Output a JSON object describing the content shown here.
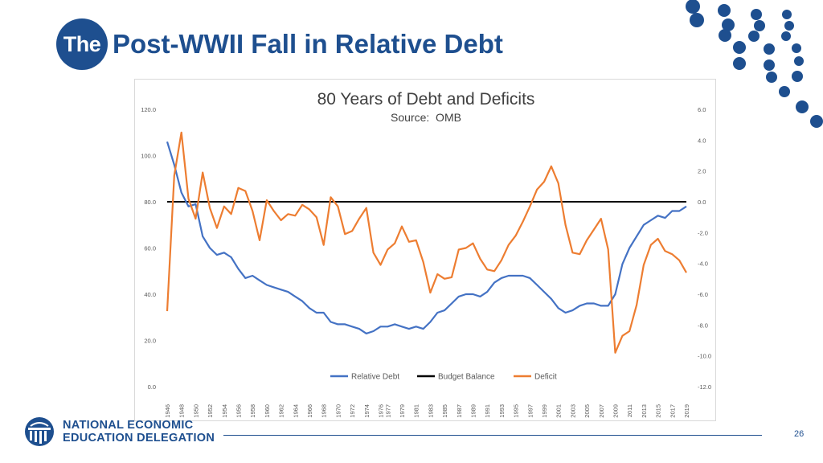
{
  "slide": {
    "badge": "The",
    "title": "Post-WWII Fall in Relative Debt",
    "page_number": "26",
    "brand_color": "#1e4f8f",
    "logo_line1": "NATIONAL ECONOMIC",
    "logo_line2": "EDUCATION DELEGATION"
  },
  "chart_data": {
    "type": "line",
    "title": "80 Years of Debt and Deficits",
    "subtitle": "Source:  OMB",
    "years": [
      1946,
      1947,
      1948,
      1949,
      1950,
      1951,
      1952,
      1953,
      1954,
      1955,
      1956,
      1957,
      1958,
      1959,
      1960,
      1961,
      1962,
      1963,
      1964,
      1965,
      1966,
      1967,
      1968,
      1969,
      1970,
      1971,
      1972,
      1973,
      1974,
      1975,
      1976,
      1977,
      1978,
      1979,
      1980,
      1981,
      1982,
      1983,
      1984,
      1985,
      1986,
      1987,
      1988,
      1989,
      1990,
      1991,
      1992,
      1993,
      1994,
      1995,
      1996,
      1997,
      1998,
      1999,
      2000,
      2001,
      2002,
      2003,
      2004,
      2005,
      2006,
      2007,
      2008,
      2009,
      2010,
      2011,
      2012,
      2013,
      2014,
      2015,
      2016,
      2017,
      2018,
      2019
    ],
    "x_tick_labels": [
      "1946",
      "1948",
      "1950",
      "1952",
      "1954",
      "1956",
      "1958",
      "1960",
      "1962",
      "1964",
      "1966",
      "1968",
      "1970",
      "1972",
      "1974",
      "1976",
      "1977",
      "1979",
      "1981",
      "1983",
      "1985",
      "1987",
      "1989",
      "1991",
      "1993",
      "1995",
      "1997",
      "1999",
      "2001",
      "2003",
      "2005",
      "2007",
      "2009",
      "2011",
      "2013",
      "2015",
      "2017",
      "2019"
    ],
    "left_axis": {
      "min": 0,
      "max": 120,
      "ticks": [
        "0.0",
        "20.0",
        "40.0",
        "60.0",
        "80.0",
        "100.0",
        "120.0"
      ]
    },
    "right_axis": {
      "min": -12,
      "max": 6,
      "ticks": [
        "-12.0",
        "-10.0",
        "-8.0",
        "-6.0",
        "-4.0",
        "-2.0",
        "0.0",
        "2.0",
        "4.0",
        "6.0"
      ]
    },
    "series": [
      {
        "name": "Relative Debt",
        "axis": "left",
        "color": "#4472c4",
        "values": [
          106,
          96,
          84,
          78,
          79,
          65,
          60,
          57,
          58,
          56,
          51,
          47,
          48,
          46,
          44,
          43,
          42,
          41,
          39,
          37,
          34,
          32,
          32,
          28,
          27,
          27,
          26,
          25,
          23,
          24,
          26,
          26,
          27,
          26,
          25,
          26,
          25,
          28,
          32,
          33,
          36,
          39,
          40,
          40,
          39,
          41,
          45,
          47,
          48,
          48,
          48,
          47,
          44,
          41,
          38,
          34,
          32,
          33,
          35,
          36,
          36,
          35,
          35,
          40,
          53,
          60,
          65,
          70,
          72,
          74,
          73,
          76,
          76,
          78
        ]
      },
      {
        "name": "Budget Balance",
        "axis": "right",
        "color": "#000000",
        "values": [
          0,
          0,
          0,
          0,
          0,
          0,
          0,
          0,
          0,
          0,
          0,
          0,
          0,
          0,
          0,
          0,
          0,
          0,
          0,
          0,
          0,
          0,
          0,
          0,
          0,
          0,
          0,
          0,
          0,
          0,
          0,
          0,
          0,
          0,
          0,
          0,
          0,
          0,
          0,
          0,
          0,
          0,
          0,
          0,
          0,
          0,
          0,
          0,
          0,
          0,
          0,
          0,
          0,
          0,
          0,
          0,
          0,
          0,
          0,
          0,
          0,
          0,
          0,
          0,
          0,
          0,
          0,
          0,
          0,
          0,
          0,
          0,
          0,
          0
        ]
      },
      {
        "name": "Deficit",
        "axis": "right",
        "color": "#ed7d31",
        "values": [
          -7.1,
          1.7,
          4.5,
          0.2,
          -1.1,
          1.9,
          -0.4,
          -1.7,
          -0.3,
          -0.8,
          0.9,
          0.7,
          -0.6,
          -2.5,
          0.1,
          -0.6,
          -1.2,
          -0.8,
          -0.9,
          -0.2,
          -0.5,
          -1.0,
          -2.8,
          0.3,
          -0.3,
          -2.1,
          -1.9,
          -1.1,
          -0.4,
          -3.3,
          -4.1,
          -3.1,
          -2.7,
          -1.6,
          -2.6,
          -2.5,
          -3.9,
          -5.9,
          -4.7,
          -5.0,
          -4.9,
          -3.1,
          -3.0,
          -2.7,
          -3.7,
          -4.4,
          -4.5,
          -3.8,
          -2.8,
          -2.2,
          -1.3,
          -0.3,
          0.8,
          1.3,
          2.3,
          1.2,
          -1.5,
          -3.3,
          -3.4,
          -2.5,
          -1.8,
          -1.1,
          -3.1,
          -9.8,
          -8.7,
          -8.4,
          -6.7,
          -4.1,
          -2.8,
          -2.4,
          -3.2,
          -3.4,
          -3.8,
          -4.6
        ]
      }
    ],
    "legend_position": "bottom",
    "grid": false
  }
}
